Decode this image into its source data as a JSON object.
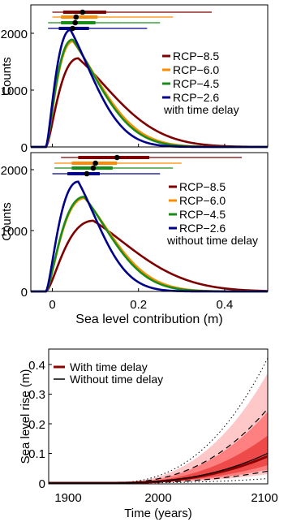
{
  "chart_data": [
    {
      "type": "line",
      "panel": "top",
      "xlabel": "",
      "ylabel": "Counts",
      "xlim": [
        -0.05,
        0.5
      ],
      "ylim": [
        0,
        2500
      ],
      "xticks": [],
      "yticks": [
        0,
        1000,
        2000
      ],
      "ytick_labels": [
        "0",
        "1000",
        "2000"
      ],
      "legend_title": "with time delay",
      "legend_position": "right",
      "series": [
        {
          "name": "RCP−8.5",
          "color": "#7f0000",
          "peak_x": 0.06,
          "peak_y": 1560,
          "tail": 0.14,
          "bar": {
            "whisker": [
              -0.0,
              0.37
            ],
            "box": [
              0.025,
              0.125
            ],
            "median": 0.07
          }
        },
        {
          "name": "RCP−6.0",
          "color": "#ff8c00",
          "peak_x": 0.048,
          "peak_y": 1860,
          "tail": 0.11,
          "bar": {
            "whisker": [
              -0.0,
              0.28
            ],
            "box": [
              0.02,
              0.105
            ],
            "median": 0.055
          }
        },
        {
          "name": "RCP−4.5",
          "color": "#1a8c1a",
          "peak_x": 0.047,
          "peak_y": 1890,
          "tail": 0.105,
          "bar": {
            "whisker": [
              -0.01,
              0.25
            ],
            "box": [
              0.02,
              0.1
            ],
            "median": 0.053
          }
        },
        {
          "name": "RCP−2.6",
          "color": "#00008b",
          "peak_x": 0.042,
          "peak_y": 2060,
          "tail": 0.09,
          "bar": {
            "whisker": [
              -0.01,
              0.22
            ],
            "box": [
              0.015,
              0.085
            ],
            "median": 0.047
          }
        }
      ]
    },
    {
      "type": "line",
      "panel": "middle",
      "xlabel": "Sea level contribution (m)",
      "ylabel": "Counts",
      "xlim": [
        -0.05,
        0.5
      ],
      "ylim": [
        0,
        2200
      ],
      "xticks": [
        0,
        0.2,
        0.4
      ],
      "xtick_labels": [
        "0",
        "0.2",
        "0.4"
      ],
      "yticks": [
        0,
        1000,
        2000
      ],
      "ytick_labels": [
        "0",
        "1000",
        "2000"
      ],
      "legend_title": "without time delay",
      "legend_position": "right",
      "series": [
        {
          "name": "RCP−8.5",
          "color": "#7f0000",
          "peak_x": 0.095,
          "peak_y": 1120,
          "tail": 0.16,
          "bar": {
            "whisker": [
              0.02,
              0.44
            ],
            "box": [
              0.06,
              0.225
            ],
            "median": 0.15
          }
        },
        {
          "name": "RCP−6.0",
          "color": "#ff8c00",
          "peak_x": 0.075,
          "peak_y": 1480,
          "tail": 0.11,
          "bar": {
            "whisker": [
              0.005,
              0.3
            ],
            "box": [
              0.045,
              0.15
            ],
            "median": 0.1
          }
        },
        {
          "name": "RCP−4.5",
          "color": "#1a8c1a",
          "peak_x": 0.074,
          "peak_y": 1500,
          "tail": 0.105,
          "bar": {
            "whisker": [
              0.005,
              0.28
            ],
            "box": [
              0.045,
              0.14
            ],
            "median": 0.095
          }
        },
        {
          "name": "RCP−2.6",
          "color": "#00008b",
          "peak_x": 0.06,
          "peak_y": 1740,
          "tail": 0.085,
          "bar": {
            "whisker": [
              0.0,
              0.25
            ],
            "box": [
              0.035,
              0.11
            ],
            "median": 0.08
          }
        }
      ]
    },
    {
      "type": "area",
      "panel": "bottom",
      "xlabel": "Time (years)",
      "ylabel": "Sea level rise (m)",
      "xlim": [
        1900,
        2100
      ],
      "ylim": [
        0,
        0.45
      ],
      "xticks": [
        1900,
        2000,
        2100
      ],
      "xtick_labels": [
        "1900",
        "2000",
        "2100"
      ],
      "yticks": [
        0,
        0.1,
        0.2,
        0.3,
        0.4
      ],
      "ytick_labels": [
        "0",
        "0.1",
        "0.2",
        "0.3",
        "0.4"
      ],
      "start_year": 1950,
      "legend_position": "top-left",
      "legend": [
        {
          "label": "With time delay",
          "color": "#8b0000"
        },
        {
          "label": "Without time delay",
          "color": "#000000"
        }
      ],
      "with_delay_2100": {
        "median": 0.09,
        "inner_band": [
          0.06,
          0.16
        ],
        "outer_band": [
          0.03,
          0.37
        ]
      },
      "without_delay_2100": {
        "median": 0.1,
        "dashed": [
          0.04,
          0.25
        ],
        "dotted": [
          0.015,
          0.42
        ]
      },
      "colors": {
        "outer": "#ffc8c8",
        "middle": "#ff8080",
        "inner": "#ee4a4a",
        "median": "#8b0000"
      }
    }
  ]
}
